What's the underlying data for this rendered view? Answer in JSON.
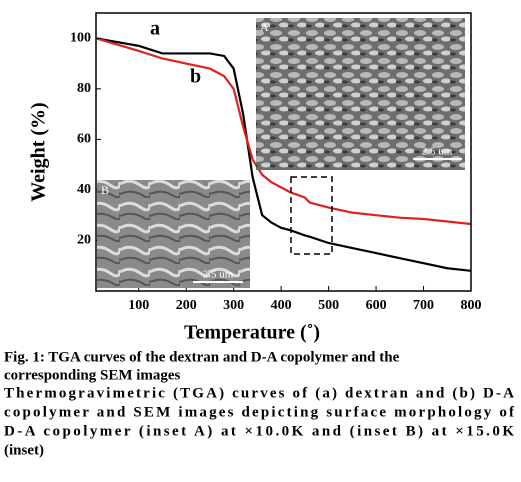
{
  "chart_data": {
    "type": "line",
    "x_label": "Temperature (˚)",
    "y_label": "Weight (%)",
    "x": [
      10,
      100,
      150,
      200,
      250,
      280,
      300,
      320,
      340,
      360,
      380,
      400,
      420,
      450,
      460,
      500,
      550,
      600,
      650,
      700,
      750,
      800
    ],
    "series": [
      {
        "name": "a",
        "color": "#000000",
        "values": [
          100,
          97,
          94,
          94,
          94,
          93,
          88,
          70,
          45,
          30,
          27,
          25,
          24,
          22,
          21.5,
          19,
          17,
          15,
          13,
          11,
          9,
          8
        ]
      },
      {
        "name": "b",
        "color": "#e02020",
        "values": [
          100,
          95,
          92,
          90,
          88,
          85,
          80,
          65,
          52,
          46,
          43,
          41,
          39,
          37,
          35,
          33,
          31,
          30,
          29,
          28.5,
          27.5,
          26.5
        ]
      }
    ],
    "xlim": [
      10,
      800
    ],
    "xticks": [
      100,
      200,
      300,
      400,
      500,
      600,
      700,
      800
    ],
    "ylim": [
      0,
      110
    ],
    "yticks": [
      20,
      40,
      60,
      80,
      100
    ],
    "insets": [
      {
        "label": "A",
        "scale": "2.5 um"
      },
      {
        "label": "B",
        "scale": "2.5 um"
      }
    ],
    "caption": {
      "title": [
        "Fig. 1: TGA curves of the dextran and D-A copolymer and the",
        "corresponding SEM images"
      ],
      "body": [
        "Thermogravimetric (TGA) curves of (a) dextran and (b) D-A",
        "copolymer and SEM images depicting surface morphology of",
        "D-A copolymer (inset A) at ×10.0K and (inset B) at ×15.0K",
        "(inset)"
      ]
    }
  }
}
